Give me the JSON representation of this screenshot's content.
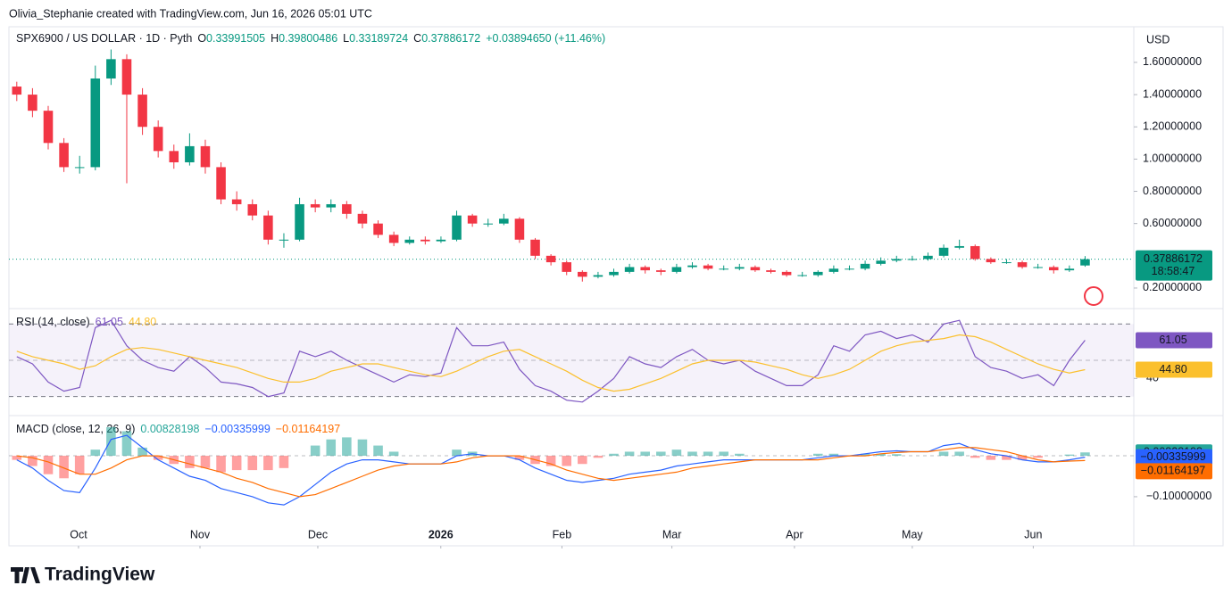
{
  "header": {
    "attribution": "Olivia_Stephanie created with TradingView.com, Jun 16, 2026 05:01 UTC",
    "symbol": "SPX6900 / US DOLLAR · 1D · Pyth",
    "ohlc_letters": [
      "O",
      "H",
      "L",
      "C"
    ],
    "change": "+0.03894650 (+11.46%)",
    "currency": "USD",
    "brand": "TradingView"
  },
  "chart_data": [
    {
      "type": "candlestick",
      "up_color": "#089981",
      "down_color": "#f23645",
      "countdown": "18:58:47",
      "xlim": [
        -0.5,
        71.1
      ],
      "xticks": [
        {
          "value": 3.93,
          "label": "Oct"
        },
        {
          "value": 11.66,
          "label": "Nov"
        },
        {
          "value": 19.16,
          "label": "Dec"
        },
        {
          "value": 26.99,
          "label": "2026"
        },
        {
          "value": 34.7,
          "label": "Feb"
        },
        {
          "value": 41.7,
          "label": "Mar"
        },
        {
          "value": 49.5,
          "label": "Apr"
        },
        {
          "value": 57.0,
          "label": "May"
        },
        {
          "value": 64.7,
          "label": "Jun"
        }
      ],
      "ylim": [
        0.078,
        1.81
      ],
      "yticks": [
        {
          "value": 0.2,
          "label": "0.20000000"
        },
        {
          "value": 0.6,
          "label": "0.60000000"
        },
        {
          "value": 0.8,
          "label": "0.80000000"
        },
        {
          "value": 1.0,
          "label": "1.00000000"
        },
        {
          "value": 1.2,
          "label": "1.20000000"
        },
        {
          "value": 1.4,
          "label": "1.40000000"
        },
        {
          "value": 1.6,
          "label": "1.60000000"
        }
      ],
      "open": [
        1.45,
        1.4,
        1.3,
        1.1,
        0.95,
        0.95,
        1.5,
        1.62,
        1.4,
        1.2,
        1.05,
        0.98,
        1.08,
        0.95,
        0.75,
        0.72,
        0.65,
        0.5,
        0.5,
        0.72,
        0.7,
        0.72,
        0.66,
        0.6,
        0.53,
        0.48,
        0.5,
        0.49,
        0.5,
        0.65,
        0.6,
        0.6,
        0.63,
        0.5,
        0.4,
        0.36,
        0.3,
        0.27,
        0.28,
        0.3,
        0.33,
        0.31,
        0.3,
        0.33,
        0.34,
        0.32,
        0.32,
        0.33,
        0.31,
        0.3,
        0.28,
        0.28,
        0.3,
        0.32,
        0.32,
        0.35,
        0.37,
        0.38,
        0.38,
        0.4,
        0.45,
        0.46,
        0.38,
        0.36,
        0.36,
        0.33,
        0.33,
        0.31,
        0.33991505
      ],
      "high": [
        1.48,
        1.44,
        1.33,
        1.13,
        1.02,
        1.58,
        1.68,
        1.65,
        1.44,
        1.24,
        1.09,
        1.16,
        1.12,
        0.98,
        0.8,
        0.75,
        0.68,
        0.54,
        0.76,
        0.75,
        0.75,
        0.74,
        0.68,
        0.62,
        0.55,
        0.52,
        0.52,
        0.52,
        0.68,
        0.66,
        0.63,
        0.66,
        0.64,
        0.51,
        0.41,
        0.37,
        0.31,
        0.3,
        0.32,
        0.35,
        0.34,
        0.32,
        0.35,
        0.36,
        0.35,
        0.34,
        0.35,
        0.34,
        0.32,
        0.31,
        0.3,
        0.31,
        0.34,
        0.34,
        0.37,
        0.39,
        0.4,
        0.4,
        0.42,
        0.47,
        0.5,
        0.47,
        0.39,
        0.38,
        0.37,
        0.35,
        0.34,
        0.34,
        0.39800486
      ],
      "low": [
        1.36,
        1.26,
        1.06,
        0.92,
        0.91,
        0.93,
        1.46,
        0.85,
        1.15,
        1.01,
        0.94,
        0.96,
        0.91,
        0.72,
        0.68,
        0.62,
        0.47,
        0.45,
        0.49,
        0.67,
        0.67,
        0.63,
        0.57,
        0.51,
        0.46,
        0.47,
        0.47,
        0.48,
        0.49,
        0.58,
        0.58,
        0.59,
        0.48,
        0.38,
        0.34,
        0.28,
        0.24,
        0.26,
        0.27,
        0.29,
        0.29,
        0.28,
        0.29,
        0.32,
        0.31,
        0.31,
        0.31,
        0.3,
        0.29,
        0.27,
        0.27,
        0.27,
        0.29,
        0.31,
        0.31,
        0.34,
        0.36,
        0.37,
        0.37,
        0.39,
        0.44,
        0.37,
        0.35,
        0.35,
        0.32,
        0.32,
        0.29,
        0.3,
        0.33189724
      ],
      "close": [
        1.4,
        1.3,
        1.1,
        0.95,
        0.95,
        1.5,
        1.62,
        1.4,
        1.2,
        1.05,
        0.98,
        1.08,
        0.95,
        0.75,
        0.72,
        0.65,
        0.5,
        0.5,
        0.72,
        0.7,
        0.72,
        0.66,
        0.6,
        0.53,
        0.48,
        0.5,
        0.49,
        0.5,
        0.65,
        0.6,
        0.6,
        0.63,
        0.5,
        0.4,
        0.36,
        0.3,
        0.27,
        0.28,
        0.3,
        0.33,
        0.31,
        0.3,
        0.33,
        0.34,
        0.32,
        0.32,
        0.33,
        0.31,
        0.3,
        0.28,
        0.28,
        0.3,
        0.32,
        0.32,
        0.35,
        0.37,
        0.38,
        0.38,
        0.4,
        0.45,
        0.46,
        0.38,
        0.36,
        0.36,
        0.33,
        0.33,
        0.31,
        0.32,
        0.37886172
      ]
    },
    {
      "type": "line",
      "title": "RSI (14, close)",
      "xlim": [
        -0.5,
        71.1
      ],
      "ylim": [
        20,
        78
      ],
      "yticks": [
        40
      ],
      "band": [
        30,
        70
      ],
      "midline": 50,
      "band_color": "#7e57c2",
      "series": [
        {
          "color": "#7e57c2",
          "values": [
            52,
            48,
            38,
            33,
            35,
            68,
            72,
            58,
            50,
            46,
            44,
            52,
            46,
            38,
            37,
            35,
            30,
            32,
            55,
            52,
            55,
            50,
            46,
            42,
            38,
            42,
            41,
            43,
            68,
            58,
            58,
            60,
            45,
            36,
            33,
            28,
            27,
            33,
            40,
            52,
            48,
            46,
            52,
            56,
            50,
            48,
            50,
            44,
            40,
            36,
            36,
            42,
            58,
            55,
            64,
            66,
            62,
            64,
            60,
            70,
            72,
            52,
            46,
            44,
            40,
            42,
            36,
            50,
            61.05
          ]
        },
        {
          "color": "#fbc02d",
          "last_value_label": "44.80",
          "values": [
            55,
            52,
            50,
            48,
            45,
            47,
            52,
            56,
            57,
            56,
            54,
            52,
            50,
            48,
            46,
            43,
            40,
            38,
            38,
            40,
            44,
            46,
            48,
            48,
            46,
            44,
            42,
            41,
            44,
            48,
            52,
            55,
            56,
            52,
            48,
            44,
            39,
            35,
            33,
            34,
            37,
            40,
            44,
            48,
            50,
            50,
            50,
            49,
            47,
            45,
            42,
            40,
            42,
            45,
            50,
            55,
            58,
            60,
            61,
            62,
            64,
            63,
            60,
            56,
            52,
            48,
            45,
            43,
            44.8
          ]
        }
      ]
    },
    {
      "type": "macd",
      "title": "MACD (close, 12, 26, 9)",
      "xlim": [
        -0.5,
        71.1
      ],
      "ylim": [
        -0.22,
        0.096
      ],
      "yticks": [
        {
          "value": -0.1,
          "label": "−0.10000000"
        }
      ],
      "histogram": {
        "color": "#26a69a",
        "negative_color": "#ff5252",
        "values": [
          -0.01,
          -0.025,
          -0.045,
          -0.055,
          -0.045,
          0.015,
          0.07,
          0.06,
          0.02,
          -0.01,
          -0.02,
          -0.03,
          -0.03,
          -0.04,
          -0.035,
          -0.035,
          -0.035,
          -0.03,
          0,
          0.025,
          0.04,
          0.045,
          0.04,
          0.025,
          0.01,
          0,
          0,
          0,
          0.015,
          0.01,
          0,
          0,
          -0.01,
          -0.02,
          -0.025,
          -0.025,
          -0.02,
          -0.005,
          0.005,
          0.01,
          0.01,
          0.01,
          0.015,
          0.01,
          0.01,
          0.01,
          0.005,
          0,
          0,
          0,
          0,
          0.005,
          0.005,
          0,
          0.005,
          0.005,
          0.004,
          0,
          0,
          0.01,
          0.01,
          -0.005,
          -0.01,
          -0.01,
          -0.01,
          -0.005,
          0,
          0.003,
          0.00828198
        ]
      },
      "series": [
        {
          "color": "#2962ff",
          "last_value_label": "−0.00335999",
          "values": [
            -0.01,
            -0.03,
            -0.06,
            -0.085,
            -0.09,
            -0.03,
            0.04,
            0.05,
            0.02,
            -0.01,
            -0.03,
            -0.05,
            -0.06,
            -0.08,
            -0.09,
            -0.1,
            -0.115,
            -0.12,
            -0.1,
            -0.07,
            -0.04,
            -0.02,
            -0.01,
            -0.01,
            -0.015,
            -0.02,
            -0.02,
            -0.02,
            0,
            0.005,
            0,
            0,
            -0.01,
            -0.03,
            -0.045,
            -0.06,
            -0.065,
            -0.06,
            -0.055,
            -0.045,
            -0.04,
            -0.035,
            -0.025,
            -0.02,
            -0.015,
            -0.01,
            -0.01,
            -0.01,
            -0.01,
            -0.01,
            -0.01,
            -0.005,
            0,
            0,
            0.005,
            0.01,
            0.012,
            0.01,
            0.01,
            0.025,
            0.03,
            0.015,
            0.005,
            0,
            -0.01,
            -0.015,
            -0.015,
            -0.01,
            -0.00335999
          ]
        },
        {
          "color": "#ff6d00",
          "last_value_label": "−0.01164197",
          "values": [
            0,
            -0.005,
            -0.015,
            -0.03,
            -0.045,
            -0.045,
            -0.03,
            -0.01,
            0,
            0,
            -0.01,
            -0.02,
            -0.03,
            -0.04,
            -0.055,
            -0.065,
            -0.08,
            -0.09,
            -0.1,
            -0.095,
            -0.08,
            -0.065,
            -0.05,
            -0.035,
            -0.025,
            -0.02,
            -0.02,
            -0.02,
            -0.015,
            -0.005,
            0,
            0,
            0,
            -0.01,
            -0.02,
            -0.035,
            -0.045,
            -0.055,
            -0.06,
            -0.055,
            -0.05,
            -0.045,
            -0.04,
            -0.03,
            -0.025,
            -0.02,
            -0.015,
            -0.01,
            -0.01,
            -0.01,
            -0.01,
            -0.01,
            -0.005,
            0,
            0,
            0.005,
            0.008,
            0.01,
            0.01,
            0.015,
            0.02,
            0.02,
            0.015,
            0.01,
            0,
            -0.01,
            -0.015,
            -0.013,
            -0.01164197
          ]
        }
      ]
    }
  ]
}
